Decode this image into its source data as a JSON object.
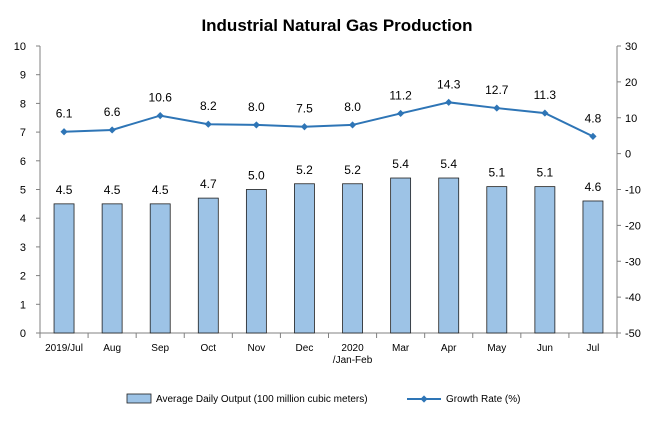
{
  "chart_data": {
    "type": "bar+line",
    "title": "Industrial Natural Gas Production",
    "categories": [
      "2019/Jul",
      "Aug",
      "Sep",
      "Oct",
      "Nov",
      "Dec",
      "2020\n/Jan-Feb",
      "Mar",
      "Apr",
      "May",
      "Jun",
      "Jul"
    ],
    "series": [
      {
        "name": "Average Daily Output (100 million cubic meters)",
        "type": "bar",
        "axis": "left",
        "color": "#9DC3E6",
        "values": [
          4.5,
          4.5,
          4.5,
          4.7,
          5.0,
          5.2,
          5.2,
          5.4,
          5.4,
          5.1,
          5.1,
          4.6
        ]
      },
      {
        "name": "Growth Rate (%)",
        "type": "line",
        "axis": "right",
        "color": "#2E75B6",
        "values": [
          6.1,
          6.6,
          10.6,
          8.2,
          8.0,
          7.5,
          8.0,
          11.2,
          14.3,
          12.7,
          11.3,
          4.8
        ]
      }
    ],
    "left_axis": {
      "ylim": [
        0,
        10
      ],
      "ticks": [
        0,
        1,
        2,
        3,
        4,
        5,
        6,
        7,
        8,
        9,
        10
      ]
    },
    "right_axis": {
      "ylim": [
        -50,
        30
      ],
      "ticks": [
        -50,
        -40,
        -30,
        -20,
        -10,
        0,
        10,
        20,
        30
      ]
    },
    "legend_position": "bottom",
    "grid": false
  }
}
